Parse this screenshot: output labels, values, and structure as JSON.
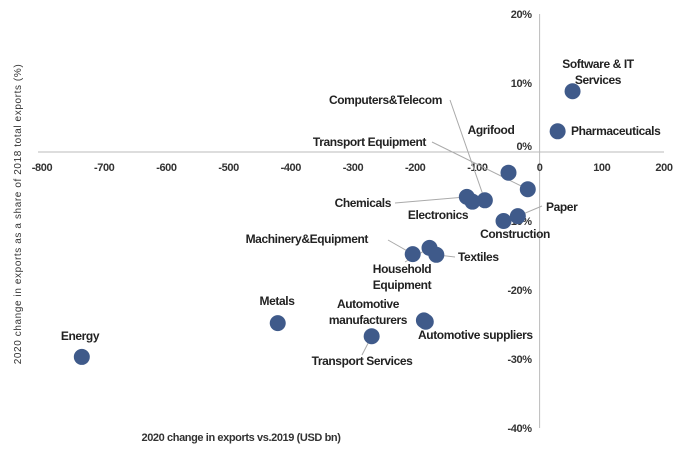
{
  "chart_data": {
    "type": "scatter",
    "title": "",
    "xlabel": "2020 change in exports vs.2019 (USD bn)",
    "ylabel": "2020 change in exports as a share of 2018 total exports (%)",
    "xlim": [
      -800,
      200
    ],
    "ylim": [
      -40,
      20
    ],
    "xticks": [
      "-800",
      "-700",
      "-600",
      "-500",
      "-400",
      "-300",
      "-200",
      "-100",
      "0",
      "100",
      "200"
    ],
    "yticks": [
      "20%",
      "10%",
      "0%",
      "-10%",
      "-20%",
      "-30%",
      "-40%"
    ],
    "grid": false,
    "legend": "none",
    "marker_color": "#3f5a8a",
    "points": [
      {
        "label": "Software & IT Services",
        "label_lines": [
          "Software & IT",
          "Services"
        ],
        "x": 53,
        "y": 8.8
      },
      {
        "label": "Pharmaceuticals",
        "label_lines": [
          "Pharmaceuticals"
        ],
        "x": 29,
        "y": 3.0
      },
      {
        "label": "Agrifood",
        "label_lines": [
          "Agrifood"
        ],
        "x": -50,
        "y": -3.0
      },
      {
        "label": "Transport Equipment",
        "label_lines": [
          "Transport  Equipment"
        ],
        "x": -19,
        "y": -5.4
      },
      {
        "label": "Chemicals",
        "label_lines": [
          "Chemicals"
        ],
        "x": -117,
        "y": -6.5
      },
      {
        "label": "Electronics",
        "label_lines": [
          "Electronics"
        ],
        "x": -108,
        "y": -7.2
      },
      {
        "label": "Computers&Telecom",
        "label_lines": [
          "Computers&Telecom"
        ],
        "x": -88,
        "y": -7.0
      },
      {
        "label": "Paper",
        "label_lines": [
          "Paper"
        ],
        "x": -35,
        "y": -9.3
      },
      {
        "label": "Construction",
        "label_lines": [
          "Construction"
        ],
        "x": -58,
        "y": -10.0
      },
      {
        "label": "Machinery&Equipment",
        "label_lines": [
          "Machinery&Equipment"
        ],
        "x": -204,
        "y": -14.8
      },
      {
        "label": "Household Equipment",
        "label_lines": [
          "Household",
          "Equipment"
        ],
        "x": -177,
        "y": -13.9
      },
      {
        "label": "Textiles",
        "label_lines": [
          "Textiles"
        ],
        "x": -166,
        "y": -14.9
      },
      {
        "label": "Metals",
        "label_lines": [
          "Metals"
        ],
        "x": -421,
        "y": -24.8
      },
      {
        "label": "Automotive manufacturers",
        "label_lines": [
          "Automotive",
          "manufacturers"
        ],
        "x": -186,
        "y": -24.4
      },
      {
        "label": "Automotive suppliers",
        "label_lines": [
          "Automotive  suppliers"
        ],
        "x": -183,
        "y": -24.6
      },
      {
        "label": "Transport Services",
        "label_lines": [
          "Transport  Services"
        ],
        "x": -270,
        "y": -26.7
      },
      {
        "label": "Energy",
        "label_lines": [
          "Energy"
        ],
        "x": -736,
        "y": -29.7
      }
    ]
  }
}
